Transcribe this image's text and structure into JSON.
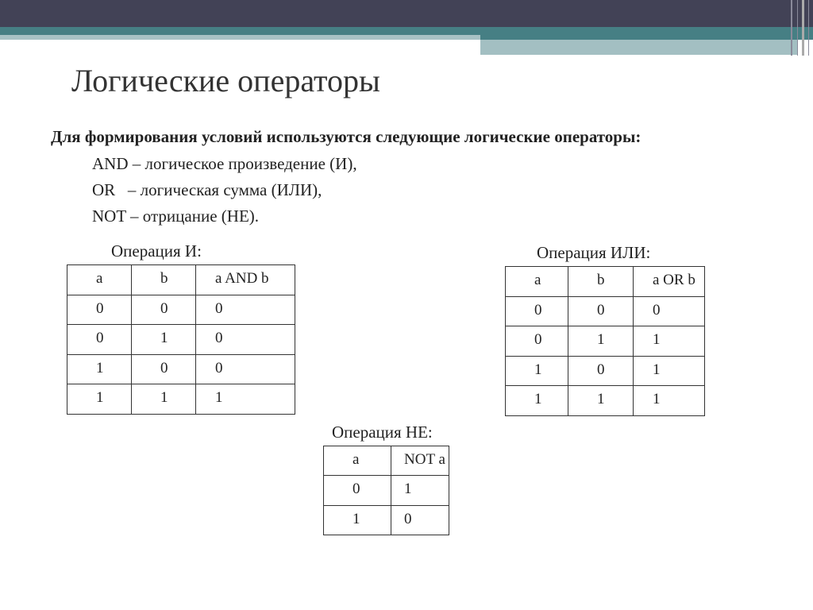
{
  "title": "Логические операторы",
  "intro": "Для формирования условий используются следующие логические операторы:",
  "operators": [
    "AND – логическое произведение (И),",
    "OR   – логическая сумма (ИЛИ),",
    "NOT – отрицание (НЕ)."
  ],
  "and_table": {
    "caption": "Операция И:",
    "headers": [
      "a",
      "b",
      "a  AND  b"
    ],
    "rows": [
      [
        "0",
        "0",
        "0"
      ],
      [
        "0",
        "1",
        "0"
      ],
      [
        "1",
        "0",
        "0"
      ],
      [
        "1",
        "1",
        "1"
      ]
    ]
  },
  "or_table": {
    "caption": "Операция ИЛИ:",
    "headers": [
      "a",
      "b",
      "a  OR  b"
    ],
    "rows": [
      [
        "0",
        "0",
        "0"
      ],
      [
        "0",
        "1",
        "1"
      ],
      [
        "1",
        "0",
        "1"
      ],
      [
        "1",
        "1",
        "1"
      ]
    ]
  },
  "not_table": {
    "caption": "Операция НЕ:",
    "headers": [
      "a",
      "NOT a"
    ],
    "rows": [
      [
        "0",
        "1"
      ],
      [
        "1",
        "0"
      ]
    ]
  },
  "colors": {
    "header_dark": "#424256",
    "accent_teal": "#467f84",
    "accent_light": "#a3bfc2"
  }
}
